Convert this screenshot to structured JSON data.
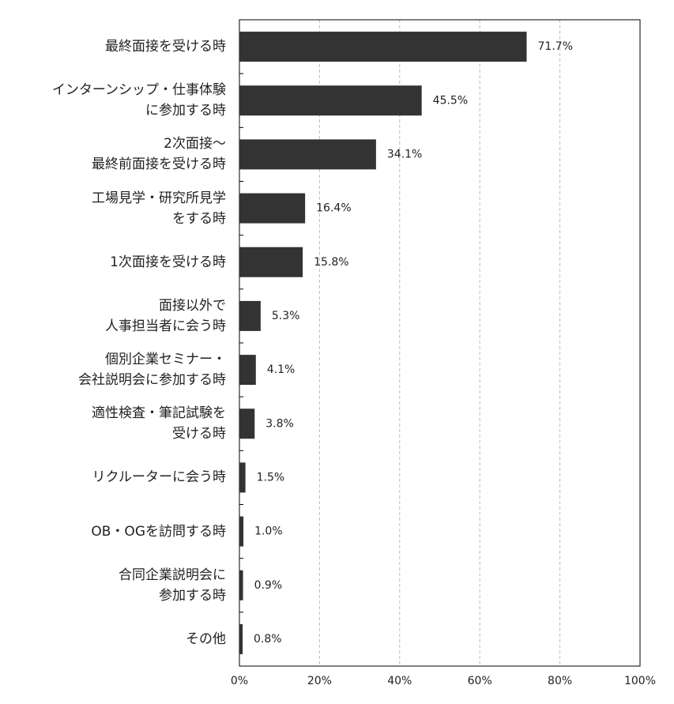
{
  "chart_data": {
    "type": "bar",
    "orientation": "horizontal",
    "categories": [
      "最終面接を受ける時",
      "インターンシップ・仕事体験\nに参加する時",
      "2次面接～\n最終前面接を受ける時",
      "工場見学・研究所見学\nをする時",
      "1次面接を受ける時",
      "面接以外で\n人事担当者に会う時",
      "個別企業セミナー・\n会社説明会に参加する時",
      "適性検査・筆記試験を\n受ける時",
      "リクルーターに会う時",
      "OB・OGを訪問する時",
      "合同企業説明会に\n参加する時",
      "その他"
    ],
    "values": [
      71.7,
      45.5,
      34.1,
      16.4,
      15.8,
      5.3,
      4.1,
      3.8,
      1.5,
      1.0,
      0.9,
      0.8
    ],
    "value_labels": [
      "71.7%",
      "45.5%",
      "34.1%",
      "16.4%",
      "15.8%",
      "5.3%",
      "4.1%",
      "3.8%",
      "1.5%",
      "1.0%",
      "0.9%",
      "0.8%"
    ],
    "color": "#333333",
    "xlim": [
      0,
      100
    ],
    "xticks": [
      {
        "value": 0,
        "label": "0%"
      },
      {
        "value": 20,
        "label": "20%"
      },
      {
        "value": 40,
        "label": "40%"
      },
      {
        "value": 60,
        "label": "60%"
      },
      {
        "value": 80,
        "label": "80%"
      },
      {
        "value": 100,
        "label": "100%"
      }
    ],
    "grid": true
  }
}
